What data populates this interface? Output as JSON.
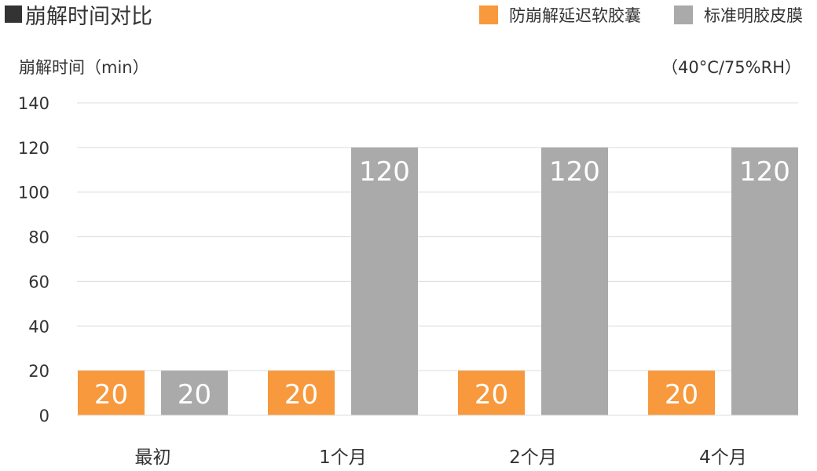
{
  "chart_data": {
    "type": "bar",
    "title": "崩解时间对比",
    "ylabel": "崩解时间（min）",
    "condition_note": "（40°C/75%RH）",
    "ylim": [
      0,
      140
    ],
    "yticks": [
      0,
      20,
      40,
      60,
      80,
      100,
      120,
      140
    ],
    "grid": true,
    "legend_position": "top-right",
    "categories": [
      "最初",
      "1个月",
      "2个月",
      "4个月"
    ],
    "series": [
      {
        "name": "防崩解延迟软胶囊",
        "color": "#F7993C",
        "values": [
          20,
          20,
          20,
          20
        ]
      },
      {
        "name": "标准明胶皮膜",
        "color": "#AAAAAA",
        "values": [
          20,
          120,
          120,
          120
        ]
      }
    ]
  }
}
